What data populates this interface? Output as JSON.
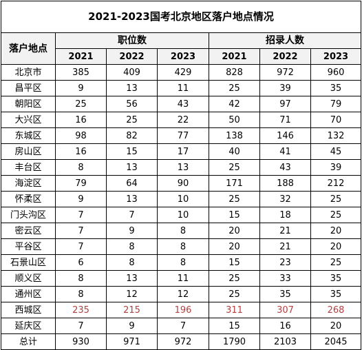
{
  "title": "2021-2023国考北京地区落户地点情况",
  "headers": {
    "location": "落户地点",
    "positions": "职位数",
    "recruits": "招录人数",
    "years": [
      "2021",
      "2022",
      "2023",
      "2021",
      "2022",
      "2023"
    ]
  },
  "rows": [
    {
      "location": "北京市",
      "values": [
        "385",
        "409",
        "429",
        "828",
        "972",
        "960"
      ]
    },
    {
      "location": "昌平区",
      "values": [
        "9",
        "13",
        "11",
        "25",
        "39",
        "35"
      ]
    },
    {
      "location": "朝阳区",
      "values": [
        "25",
        "56",
        "43",
        "42",
        "97",
        "79"
      ]
    },
    {
      "location": "大兴区",
      "values": [
        "16",
        "25",
        "22",
        "50",
        "71",
        "70"
      ]
    },
    {
      "location": "东城区",
      "values": [
        "98",
        "82",
        "77",
        "138",
        "146",
        "132"
      ]
    },
    {
      "location": "房山区",
      "values": [
        "16",
        "15",
        "17",
        "40",
        "41",
        "45"
      ]
    },
    {
      "location": "丰台区",
      "values": [
        "8",
        "13",
        "13",
        "25",
        "43",
        "39"
      ]
    },
    {
      "location": "海淀区",
      "values": [
        "79",
        "64",
        "90",
        "171",
        "188",
        "212"
      ]
    },
    {
      "location": "怀柔区",
      "values": [
        "9",
        "13",
        "10",
        "25",
        "32",
        "25"
      ]
    },
    {
      "location": "门头沟区",
      "values": [
        "7",
        "7",
        "10",
        "15",
        "18",
        "25"
      ]
    },
    {
      "location": "密云区",
      "values": [
        "7",
        "9",
        "8",
        "20",
        "21",
        "20"
      ]
    },
    {
      "location": "平谷区",
      "values": [
        "7",
        "8",
        "8",
        "20",
        "21",
        "20"
      ]
    },
    {
      "location": "石景山区",
      "values": [
        "6",
        "8",
        "8",
        "15",
        "23",
        "25"
      ]
    },
    {
      "location": "顺义区",
      "values": [
        "8",
        "13",
        "11",
        "25",
        "33",
        "35"
      ]
    },
    {
      "location": "通州区",
      "values": [
        "8",
        "12",
        "12",
        "25",
        "35",
        "35"
      ]
    },
    {
      "location": "西城区",
      "values": [
        "235",
        "215",
        "196",
        "311",
        "307",
        "268"
      ]
    },
    {
      "location": "延庆区",
      "values": [
        "7",
        "9",
        "7",
        "15",
        "16",
        "20"
      ]
    },
    {
      "location": "总计",
      "values": [
        "930",
        "971",
        "972",
        "1790",
        "2103",
        "2045"
      ]
    }
  ],
  "highlight_color": "#b0403f"
}
